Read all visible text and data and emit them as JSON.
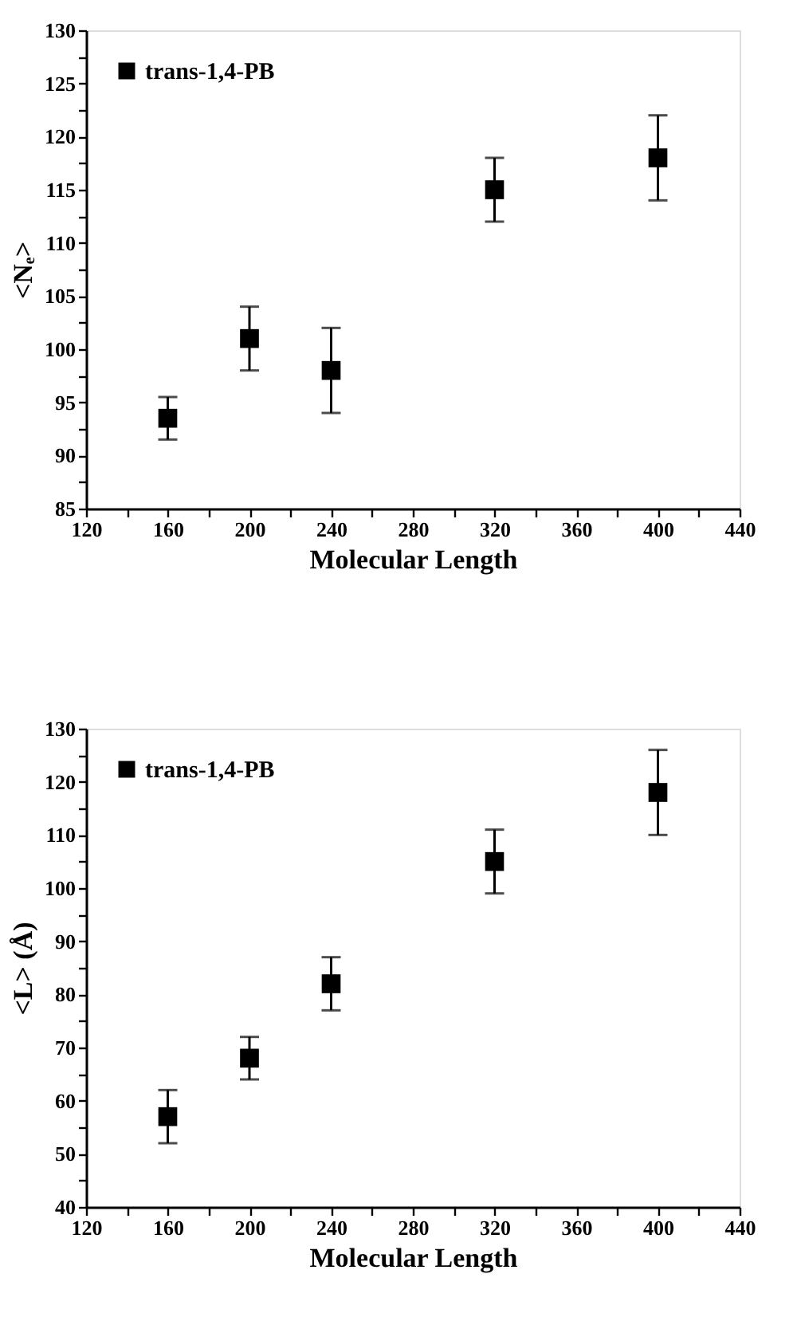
{
  "chart_data": [
    {
      "type": "scatter",
      "xlabel": "Molecular Length",
      "ylabel": "<Nₑ>",
      "x": [
        160,
        200,
        240,
        320,
        400
      ],
      "series": [
        {
          "name": "trans-1,4-PB",
          "color": "#000000",
          "values": [
            93.5,
            101,
            98,
            115,
            118
          ],
          "errors": [
            [
              91.5,
              95.5
            ],
            [
              98,
              104
            ],
            [
              94,
              102
            ],
            [
              112,
              118
            ],
            [
              114,
              122
            ]
          ]
        }
      ],
      "xlim": [
        120,
        440
      ],
      "xticks": [
        120,
        {
          "value": 140,
          "label": null
        },
        160,
        {
          "value": 180,
          "label": null
        },
        200,
        {
          "value": 220,
          "label": null
        },
        240,
        {
          "value": 260,
          "label": null
        },
        280,
        {
          "value": 300,
          "label": null
        },
        320,
        {
          "value": 340,
          "label": null
        },
        360,
        {
          "value": 380,
          "label": null
        },
        400,
        {
          "value": 420,
          "label": null
        },
        440
      ],
      "ylim": [
        85,
        130
      ],
      "yticks": [
        85,
        {
          "value": 87.5,
          "label": null
        },
        90,
        {
          "value": 92.5,
          "label": null
        },
        95,
        {
          "value": 97.5,
          "label": null
        },
        100,
        {
          "value": 102.5,
          "label": null
        },
        105,
        {
          "value": 107.5,
          "label": null
        },
        110,
        {
          "value": 112.5,
          "label": null
        },
        115,
        {
          "value": 117.5,
          "label": null
        },
        120,
        {
          "value": 122.5,
          "label": null
        },
        125,
        {
          "value": 127.5,
          "label": null
        },
        130
      ],
      "marker": "square",
      "legend": "top left",
      "grid": false
    },
    {
      "type": "scatter",
      "xlabel": "Molecular Length",
      "ylabel": "<L> (Å)",
      "x": [
        160,
        200,
        240,
        320,
        400
      ],
      "series": [
        {
          "name": "trans-1,4-PB",
          "color": "#000000",
          "values": [
            57,
            68,
            82,
            105,
            118
          ],
          "errors": [
            [
              52,
              62
            ],
            [
              64,
              72
            ],
            [
              77,
              87
            ],
            [
              99,
              111
            ],
            [
              110,
              126
            ]
          ]
        }
      ],
      "xlim": [
        120,
        440
      ],
      "xticks": [
        120,
        {
          "value": 140,
          "label": null
        },
        160,
        {
          "value": 180,
          "label": null
        },
        200,
        {
          "value": 220,
          "label": null
        },
        240,
        {
          "value": 260,
          "label": null
        },
        280,
        {
          "value": 300,
          "label": null
        },
        320,
        {
          "value": 340,
          "label": null
        },
        360,
        {
          "value": 380,
          "label": null
        },
        400,
        {
          "value": 420,
          "label": null
        },
        440
      ],
      "ylim": [
        40,
        130
      ],
      "yticks": [
        40,
        {
          "value": 45,
          "label": null
        },
        50,
        {
          "value": 55,
          "label": null
        },
        60,
        {
          "value": 65,
          "label": null
        },
        70,
        {
          "value": 75,
          "label": null
        },
        80,
        {
          "value": 85,
          "label": null
        },
        90,
        {
          "value": 95,
          "label": null
        },
        100,
        {
          "value": 105,
          "label": null
        },
        110,
        {
          "value": 115,
          "label": null
        },
        120,
        {
          "value": 125,
          "label": null
        },
        130
      ],
      "marker": "square",
      "legend": "top left",
      "grid": false
    }
  ]
}
